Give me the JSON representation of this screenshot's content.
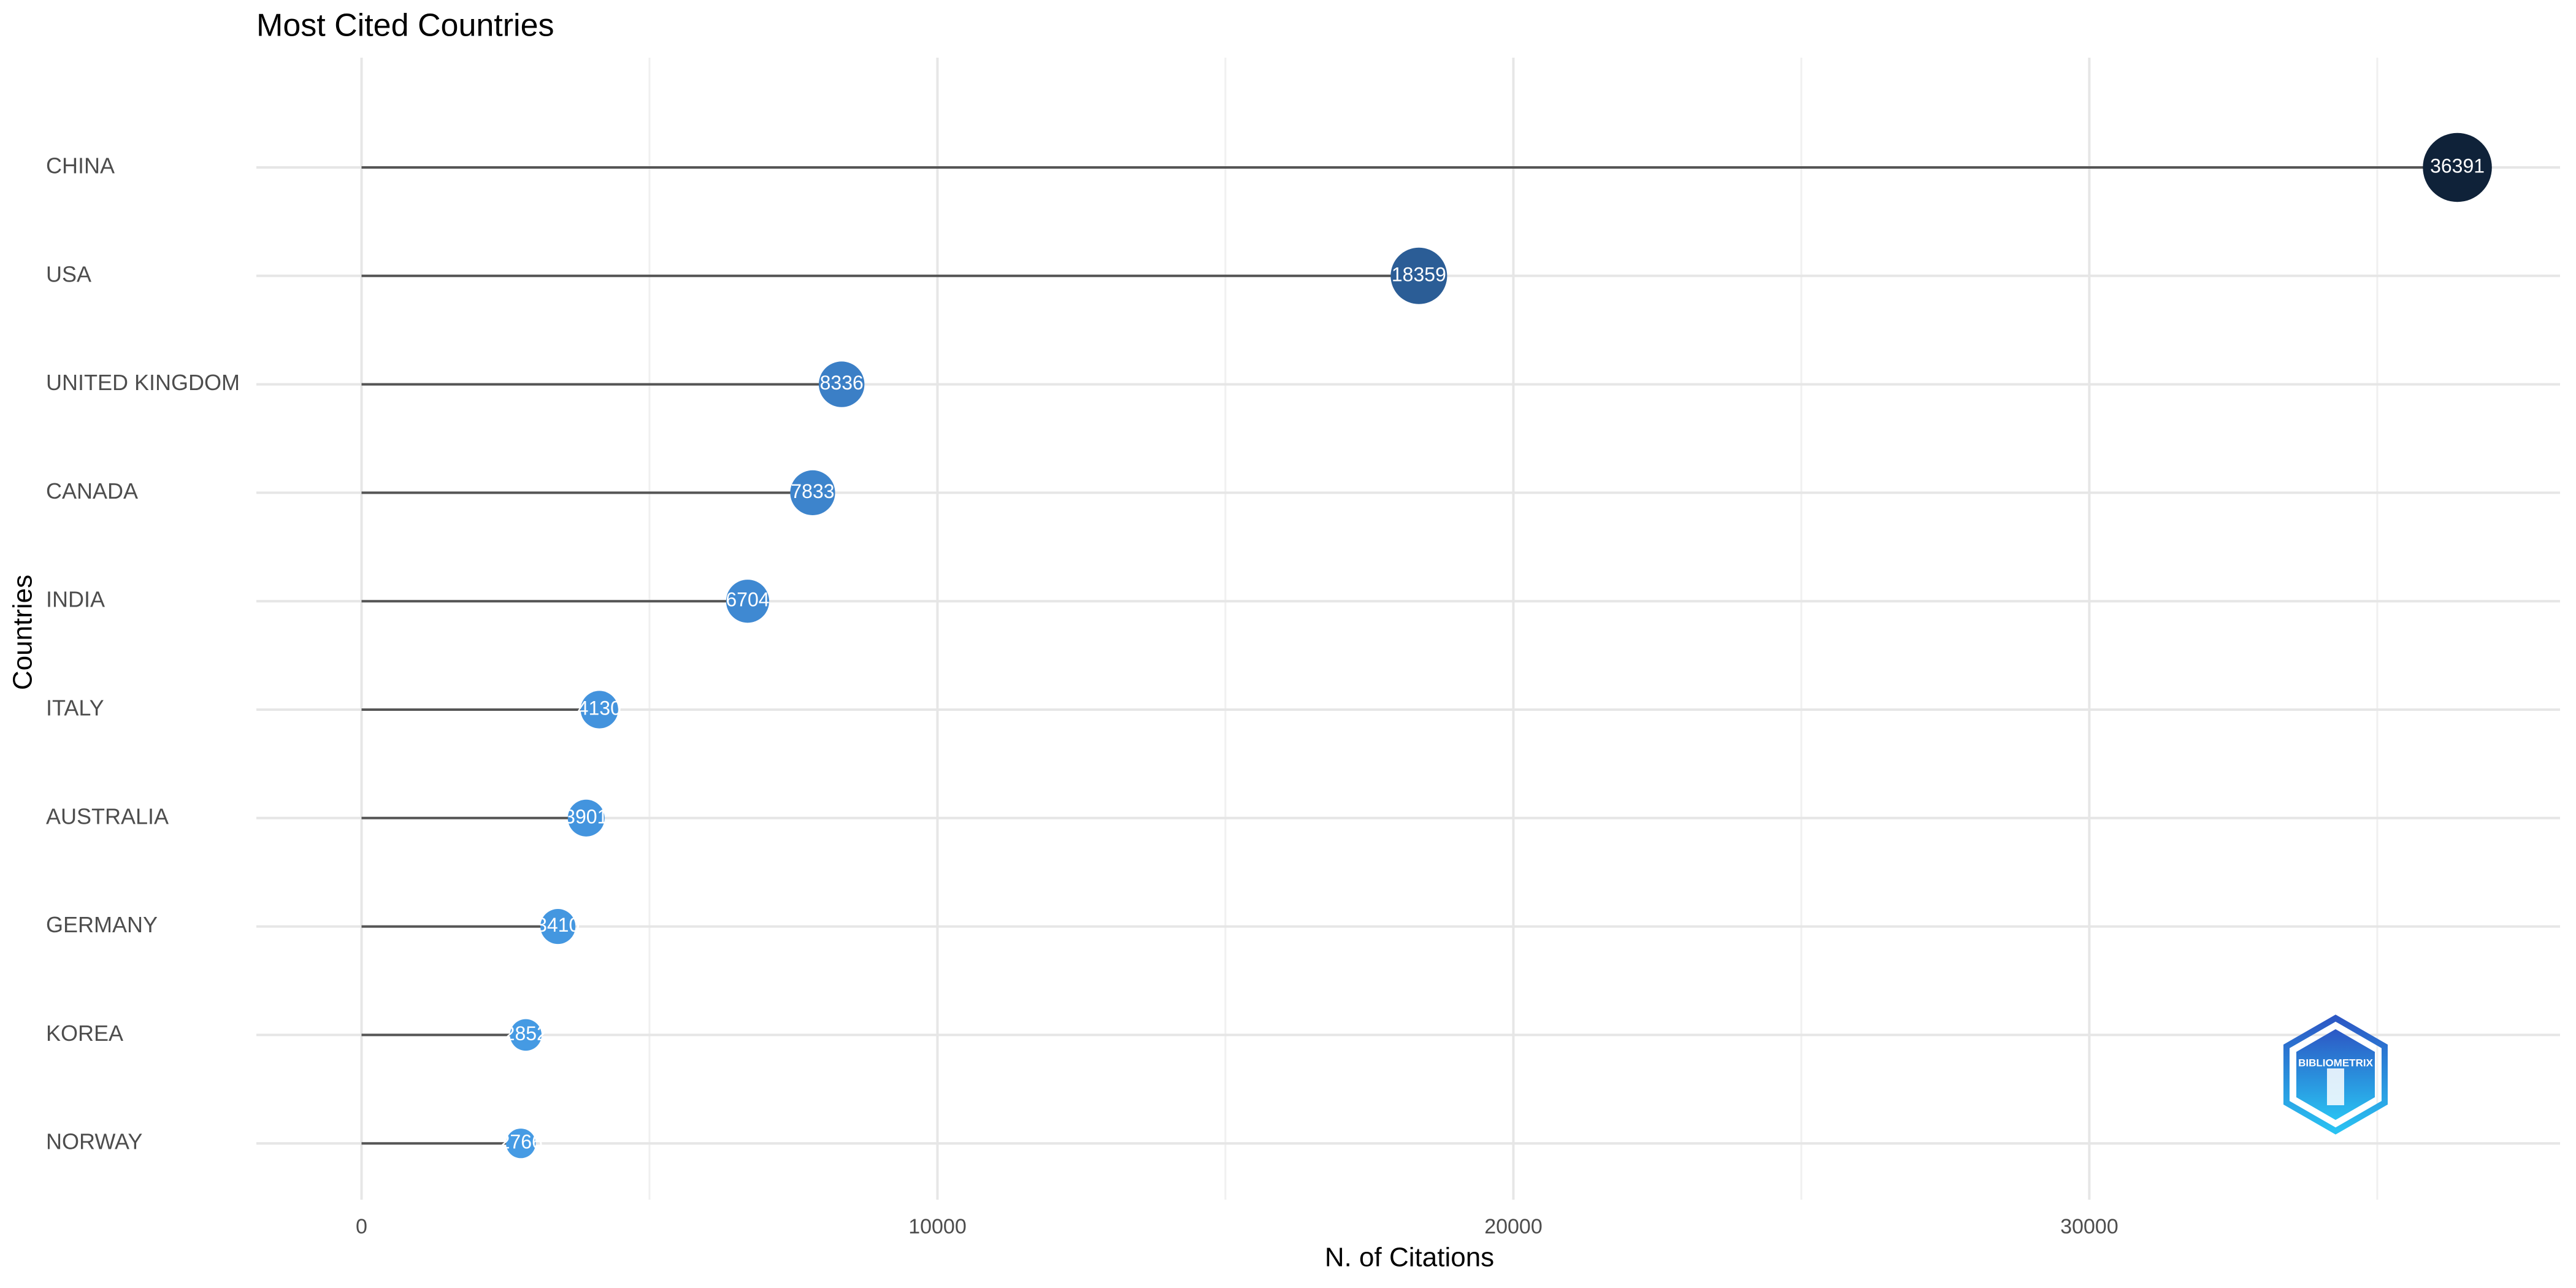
{
  "chart_data": {
    "type": "lollipop",
    "title": "Most Cited Countries",
    "x_label": "N. of Citations",
    "y_label": "Countries",
    "categories": [
      "CHINA",
      "USA",
      "UNITED KINGDOM",
      "CANADA",
      "INDIA",
      "ITALY",
      "AUSTRALIA",
      "GERMANY",
      "KOREA",
      "NORWAY"
    ],
    "values": [
      36391,
      18359,
      8336,
      7833,
      6704,
      4130,
      3901,
      3410,
      2852,
      2766
    ],
    "colors": [
      "#0f2239",
      "#2b5d96",
      "#3b7fc6",
      "#3d84cc",
      "#3f89d2",
      "#4393dd",
      "#4394de",
      "#4497e0",
      "#459ae3",
      "#469be4"
    ],
    "line_color": "#555555",
    "xlim": [
      -1826,
      38174
    ],
    "xticks": [
      0,
      10000,
      20000,
      30000
    ],
    "minor_xticks": [
      5000,
      15000,
      25000,
      35000
    ],
    "grid": true,
    "logo_text": "BIBLIOMETRIX"
  }
}
